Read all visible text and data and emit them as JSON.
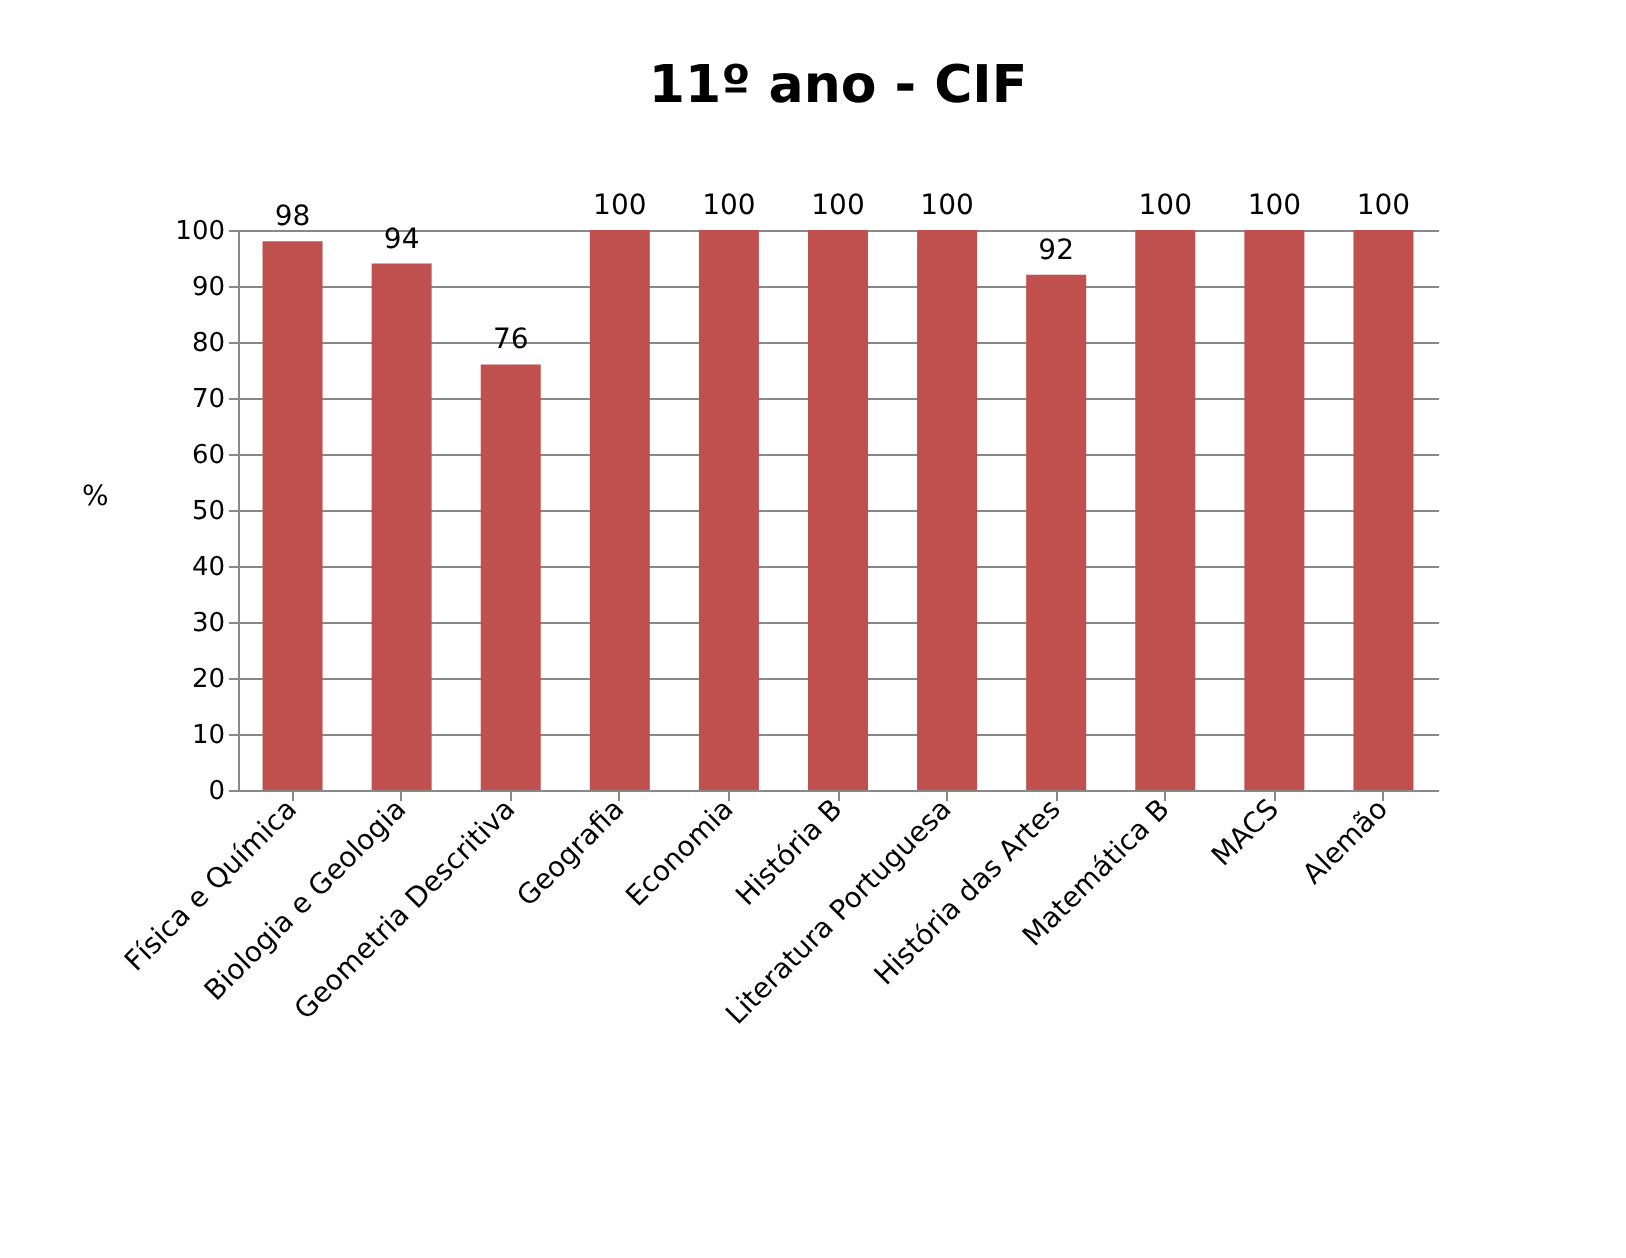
{
  "chart_data": {
    "type": "bar",
    "title": "11º ano - CIF",
    "ylabel": "%",
    "categories": [
      "Física e Química",
      "Biologia e Geologia",
      "Geometria Descritiva",
      "Geografia",
      "Economia",
      "História B",
      "Literatura Portuguesa",
      "História das Artes",
      "Matemática B",
      "MACS",
      "Alemão"
    ],
    "values": [
      98,
      94,
      76,
      100,
      100,
      100,
      100,
      92,
      100,
      100,
      100
    ],
    "color": "#c0504d",
    "ylim": [
      0,
      100
    ],
    "yticks": [
      0,
      10,
      20,
      30,
      40,
      50,
      60,
      70,
      80,
      90,
      100
    ],
    "grid": "y",
    "data_labels": true
  }
}
